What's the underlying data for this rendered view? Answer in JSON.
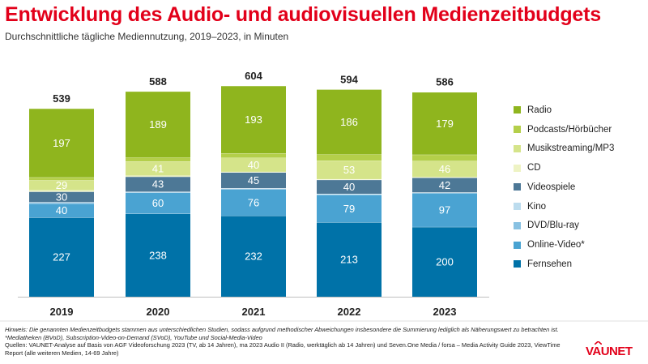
{
  "header": {
    "title": "Entwicklung des Audio- und audiovisuellen Medienzeitbudgets",
    "subtitle": "Durchschnittliche tägliche Mediennutzung, 2019–2023, in Minuten"
  },
  "chart_data": {
    "type": "bar",
    "stacked": true,
    "title": "Entwicklung des Audio- und audiovisuellen Medienzeitbudgets",
    "subtitle": "Durchschnittliche tägliche Mediennutzung, 2019–2023, in Minuten",
    "categories": [
      "2019",
      "2020",
      "2021",
      "2022",
      "2023"
    ],
    "totals": [
      539,
      588,
      604,
      594,
      586
    ],
    "series": [
      {
        "name": "Fernsehen",
        "color": "#0072a8",
        "values": [
          227,
          238,
          232,
          213,
          200
        ],
        "labeled": true
      },
      {
        "name": "Online-Video*",
        "color": "#4aa3d2",
        "values": [
          40,
          60,
          76,
          79,
          97
        ],
        "labeled": true
      },
      {
        "name": "DVD/Blu-ray",
        "color": "#88c1e2",
        "values": [
          3,
          2,
          2,
          2,
          1
        ],
        "labeled": false
      },
      {
        "name": "Kino",
        "color": "#bcdcee",
        "values": [
          1,
          1,
          1,
          1,
          1
        ],
        "labeled": false
      },
      {
        "name": "Videospiele",
        "color": "#4d7896",
        "values": [
          30,
          43,
          45,
          40,
          42
        ],
        "labeled": true
      },
      {
        "name": "CD",
        "color": "#eef3c4",
        "values": [
          4,
          3,
          2,
          2,
          2
        ],
        "labeled": false
      },
      {
        "name": "Musikstreaming/MP3",
        "color": "#d5e48a",
        "values": [
          29,
          41,
          40,
          53,
          46
        ],
        "labeled": true
      },
      {
        "name": "Podcasts/Hörbücher",
        "color": "#b4cf4a",
        "values": [
          8,
          11,
          13,
          18,
          18
        ],
        "labeled": false
      },
      {
        "name": "Radio",
        "color": "#8fb51e",
        "values": [
          197,
          189,
          193,
          186,
          179
        ],
        "labeled": true
      }
    ],
    "legend_order": [
      "Radio",
      "Podcasts/Hörbücher",
      "Musikstreaming/MP3",
      "CD",
      "Videospiele",
      "Kino",
      "DVD/Blu-ray",
      "Online-Video*",
      "Fernsehen"
    ],
    "legend_position": "right",
    "ylim": [
      0,
      604
    ],
    "xlabel": "",
    "ylabel": "",
    "grid": false
  },
  "footer": {
    "note_line1": "Hinweis: Die genannten Medienzeitbudgets stammen aus unterschiedlichen Studien, sodass aufgrund methodischer Abweichungen insbesondere die Summierung lediglich als Näherungswert zu betrachten ist.",
    "note_line2": "*Mediatheken (BVoD), Subscription-Video-on-Demand (SVoD), YouTube und Social-Media-Video",
    "sources": "Quellen: VAUNET-Analyse auf Basis von AGF Videoforschung 2023 (TV, ab 14 Jahren), ma 2023 Audio II (Radio, werktäglich ab 14 Jahren) und Seven.One Media / forsa – Media Activity Guide 2023, ViewTime Report (alle weiteren Medien, 14-69 Jahre)"
  },
  "logo": {
    "text": "VAUNET",
    "color": "#e2001a"
  }
}
